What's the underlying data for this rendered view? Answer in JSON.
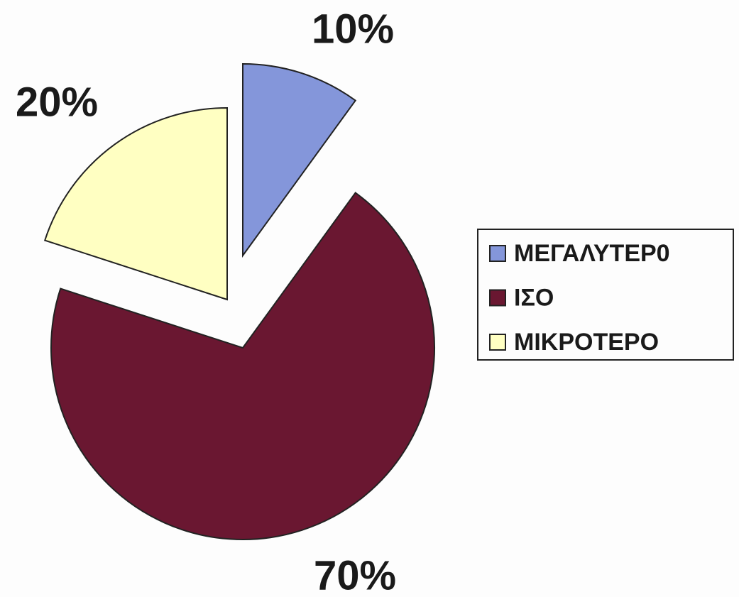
{
  "chart_data": {
    "type": "pie",
    "categories": [
      "ΜΕΓΑΛΥΤΕΡ0",
      "ΙΣΟ",
      "ΜΙΚΡΟΤΕΡΟ"
    ],
    "values": [
      10,
      70,
      20
    ],
    "value_labels": [
      "10%",
      "70%",
      "20%"
    ],
    "colors": [
      "#8496da",
      "#6a1731",
      "#ffffc2"
    ],
    "legend": "right"
  }
}
